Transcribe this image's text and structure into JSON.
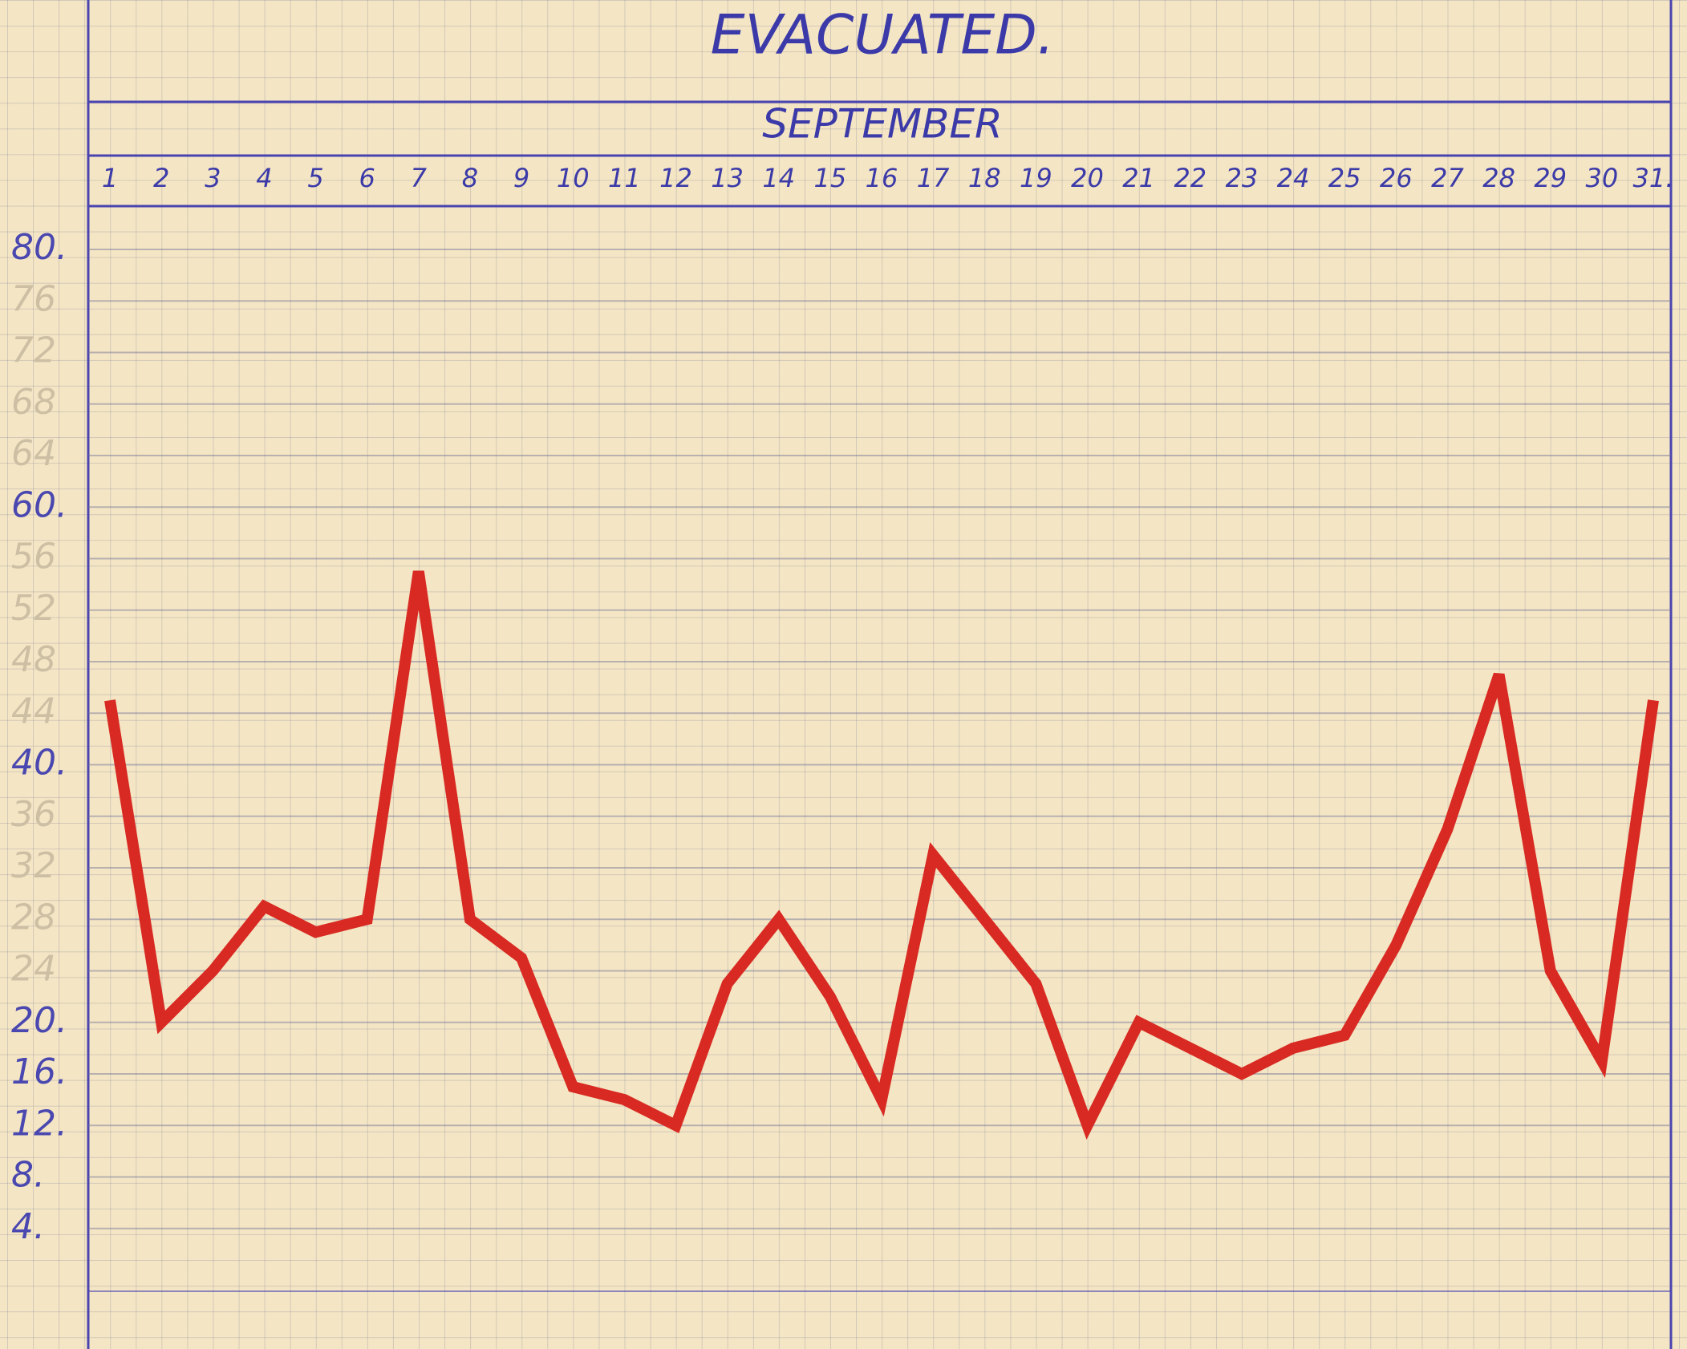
{
  "chart_data": {
    "type": "line",
    "title": "EVACUATED.",
    "subtitle": "SEPTEMBER",
    "categories": [
      "1",
      "2",
      "3",
      "4",
      "5",
      "6",
      "7",
      "8",
      "9",
      "10",
      "11",
      "12",
      "13",
      "14",
      "15",
      "16",
      "17",
      "18",
      "19",
      "20",
      "21",
      "22",
      "23",
      "24",
      "25",
      "26",
      "27",
      "28",
      "29",
      "30",
      "31."
    ],
    "series": [
      {
        "color": "#d82a22",
        "values": [
          45,
          20,
          24,
          29,
          27,
          28,
          55,
          28,
          25,
          15,
          14,
          12,
          23,
          28,
          22,
          14,
          33,
          28,
          23,
          12,
          20,
          18,
          16,
          18,
          19,
          26,
          35,
          47,
          24,
          17,
          45
        ]
      }
    ],
    "ylim": [
      0,
      80
    ],
    "yticks": [
      {
        "value": 4,
        "label": "4."
      },
      {
        "value": 8,
        "label": "8."
      },
      {
        "value": 12,
        "label": "12."
      },
      {
        "value": 16,
        "label": "16."
      },
      {
        "value": 20,
        "label": "20."
      },
      24,
      28,
      32,
      36,
      {
        "value": 40,
        "label": "40."
      },
      44,
      48,
      52,
      56,
      {
        "value": 60,
        "label": "60."
      },
      64,
      68,
      72,
      76,
      {
        "value": 80,
        "label": "80."
      }
    ],
    "grid": true
  }
}
